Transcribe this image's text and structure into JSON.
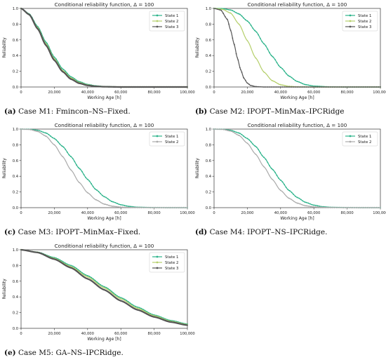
{
  "colors": {
    "State 1": "#2bb38a",
    "State 2": "#b5cf6b",
    "State 3": "#555555",
    "Panel_c State 2": "#aaaaaa"
  },
  "captions": [
    {
      "tag": "(a)",
      "text": " Case M1: Fmincon–NS–Fixed."
    },
    {
      "tag": "(b)",
      "text": " Case M2: IPOPT–MinMax–IPCRidge"
    },
    {
      "tag": "(c)",
      "text": " Case M3: IPOPT–MinMax–Fixed."
    },
    {
      "tag": "(d)",
      "text": " Case M4: IPOPT–NS–IPCRidge."
    },
    {
      "tag": "(e)",
      "text": " Case M5: GA–NS–IPCRidge."
    }
  ],
  "chart_data": [
    {
      "type": "line",
      "title": "Conditional reliability function, Δ = 100",
      "xlabel": "Working Age [h]",
      "ylabel": "Reliability",
      "xlim": [
        0,
        100000
      ],
      "ylim": [
        0,
        1.0
      ],
      "xticks": [
        "0",
        "20,000",
        "40,000",
        "60,000",
        "80,000",
        "100,000"
      ],
      "yticks": [
        "0.0",
        "0.2",
        "0.4",
        "0.6",
        "0.8",
        "1.0"
      ],
      "legend": "top-right",
      "series": [
        {
          "name": "State 1",
          "x": [
            0,
            5000,
            10000,
            15000,
            20000,
            25000,
            30000,
            35000,
            40000,
            45000,
            50000,
            60000,
            80000,
            100000
          ],
          "values": [
            1.0,
            0.93,
            0.77,
            0.57,
            0.38,
            0.23,
            0.13,
            0.068,
            0.033,
            0.015,
            0.006,
            0.001,
            0.0,
            0.0
          ]
        },
        {
          "name": "State 2",
          "x": [
            0,
            5000,
            10000,
            15000,
            20000,
            25000,
            30000,
            35000,
            40000,
            45000,
            50000,
            60000,
            80000,
            100000
          ],
          "values": [
            1.0,
            0.925,
            0.755,
            0.55,
            0.36,
            0.21,
            0.115,
            0.057,
            0.026,
            0.011,
            0.004,
            0.0,
            0.0,
            0.0
          ]
        },
        {
          "name": "State 3",
          "x": [
            0,
            5000,
            10000,
            15000,
            20000,
            25000,
            30000,
            35000,
            40000,
            45000,
            50000,
            60000,
            80000,
            100000
          ],
          "values": [
            1.0,
            0.92,
            0.74,
            0.53,
            0.34,
            0.195,
            0.1,
            0.047,
            0.02,
            0.008,
            0.003,
            0.0,
            0.0,
            0.0
          ]
        }
      ]
    },
    {
      "type": "line",
      "title": "Conditional reliability function, Δ = 100",
      "xlabel": "Working Age [h]",
      "ylabel": "Reliability",
      "xlim": [
        0,
        100000
      ],
      "ylim": [
        0,
        1.0
      ],
      "xticks": [
        "0",
        "20,000",
        "40,000",
        "60,000",
        "80,000",
        "100,000"
      ],
      "yticks": [
        "0.0",
        "0.2",
        "0.4",
        "0.6",
        "0.8",
        "1.0"
      ],
      "legend": "top-right",
      "series": [
        {
          "name": "State 1",
          "x": [
            0,
            5000,
            10000,
            15000,
            20000,
            25000,
            30000,
            35000,
            40000,
            45000,
            50000,
            55000,
            60000,
            70000,
            80000,
            100000
          ],
          "values": [
            1.0,
            0.998,
            0.98,
            0.93,
            0.84,
            0.71,
            0.55,
            0.39,
            0.25,
            0.14,
            0.07,
            0.03,
            0.012,
            0.001,
            0.0,
            0.0
          ]
        },
        {
          "name": "State 2",
          "x": [
            0,
            5000,
            10000,
            15000,
            20000,
            25000,
            30000,
            35000,
            40000,
            45000,
            50000,
            60000,
            80000,
            100000
          ],
          "values": [
            1.0,
            0.99,
            0.94,
            0.8,
            0.59,
            0.37,
            0.19,
            0.08,
            0.028,
            0.008,
            0.002,
            0.0,
            0.0,
            0.0
          ]
        },
        {
          "name": "State 3",
          "x": [
            0,
            4000,
            8000,
            10000,
            12000,
            14000,
            16000,
            18000,
            20000,
            22000,
            25000,
            30000,
            40000,
            100000
          ],
          "values": [
            1.0,
            0.98,
            0.86,
            0.72,
            0.55,
            0.37,
            0.22,
            0.11,
            0.05,
            0.02,
            0.005,
            0.0,
            0.0,
            0.0
          ]
        }
      ]
    },
    {
      "type": "line",
      "title": "Conditional reliability function, Δ = 100",
      "xlabel": "Working Age [h]",
      "ylabel": "Reliability",
      "xlim": [
        0,
        100000
      ],
      "ylim": [
        0,
        1.0
      ],
      "xticks": [
        "0",
        "20,000",
        "40,000",
        "60,000",
        "80,000",
        "100,000"
      ],
      "yticks": [
        "0.0",
        "0.2",
        "0.4",
        "0.6",
        "0.8",
        "1.0"
      ],
      "legend": "top-right",
      "series": [
        {
          "name": "State 1",
          "x": [
            0,
            5000,
            10000,
            15000,
            20000,
            25000,
            30000,
            35000,
            40000,
            45000,
            50000,
            55000,
            60000,
            65000,
            70000,
            80000,
            90000,
            100000
          ],
          "values": [
            1.0,
            0.998,
            0.985,
            0.95,
            0.88,
            0.78,
            0.65,
            0.5,
            0.36,
            0.23,
            0.14,
            0.075,
            0.037,
            0.016,
            0.006,
            0.001,
            0.0,
            0.0
          ]
        },
        {
          "name": "State 2",
          "x": [
            0,
            5000,
            10000,
            15000,
            20000,
            25000,
            30000,
            35000,
            40000,
            45000,
            50000,
            55000,
            60000,
            70000,
            80000,
            100000
          ],
          "values": [
            1.0,
            0.996,
            0.97,
            0.91,
            0.8,
            0.65,
            0.48,
            0.32,
            0.19,
            0.1,
            0.045,
            0.018,
            0.006,
            0.001,
            0.0,
            0.0
          ]
        }
      ]
    },
    {
      "type": "line",
      "title": "Conditional reliability function, Δ = 100",
      "xlabel": "Working Age [h]",
      "ylabel": "Reliability",
      "xlim": [
        0,
        100000
      ],
      "ylim": [
        0,
        1.0
      ],
      "xticks": [
        "0",
        "20,000",
        "40,000",
        "60,000",
        "80,000",
        "100,000"
      ],
      "yticks": [
        "0.0",
        "0.2",
        "0.4",
        "0.6",
        "0.8",
        "1.0"
      ],
      "legend": "top-right",
      "series": [
        {
          "name": "State 1",
          "x": [
            0,
            5000,
            10000,
            15000,
            20000,
            25000,
            30000,
            35000,
            40000,
            45000,
            50000,
            55000,
            60000,
            65000,
            70000,
            80000,
            90000,
            100000
          ],
          "values": [
            1.0,
            0.998,
            0.985,
            0.95,
            0.88,
            0.78,
            0.64,
            0.49,
            0.35,
            0.22,
            0.13,
            0.068,
            0.032,
            0.013,
            0.005,
            0.001,
            0.0,
            0.0
          ]
        },
        {
          "name": "State 2",
          "x": [
            0,
            5000,
            10000,
            15000,
            20000,
            25000,
            30000,
            35000,
            40000,
            45000,
            50000,
            55000,
            60000,
            70000,
            80000,
            100000
          ],
          "values": [
            1.0,
            0.997,
            0.975,
            0.92,
            0.82,
            0.68,
            0.52,
            0.36,
            0.22,
            0.12,
            0.058,
            0.024,
            0.009,
            0.001,
            0.0,
            0.0
          ]
        }
      ]
    },
    {
      "type": "line",
      "title": "Conditional reliability function, Δ = 100",
      "xlabel": "Working Age [h]",
      "ylabel": "Reliability",
      "xlim": [
        0,
        100000
      ],
      "ylim": [
        0,
        1.0
      ],
      "xticks": [
        "0",
        "20,000",
        "40,000",
        "60,000",
        "80,000",
        "100,000"
      ],
      "yticks": [
        "0.0",
        "0.2",
        "0.4",
        "0.6",
        "0.8",
        "1.0"
      ],
      "legend": "top-right",
      "series": [
        {
          "name": "State 1",
          "x": [
            0,
            10000,
            20000,
            30000,
            40000,
            50000,
            60000,
            70000,
            80000,
            90000,
            100000
          ],
          "values": [
            1.0,
            0.97,
            0.9,
            0.8,
            0.67,
            0.53,
            0.39,
            0.27,
            0.17,
            0.1,
            0.055
          ]
        },
        {
          "name": "State 2",
          "x": [
            0,
            10000,
            20000,
            30000,
            40000,
            50000,
            60000,
            70000,
            80000,
            90000,
            100000
          ],
          "values": [
            1.0,
            0.968,
            0.89,
            0.785,
            0.655,
            0.515,
            0.375,
            0.255,
            0.16,
            0.09,
            0.048
          ]
        },
        {
          "name": "State 3",
          "x": [
            0,
            10000,
            20000,
            30000,
            40000,
            50000,
            60000,
            70000,
            80000,
            90000,
            100000
          ],
          "values": [
            1.0,
            0.965,
            0.88,
            0.77,
            0.63,
            0.49,
            0.35,
            0.235,
            0.145,
            0.08,
            0.04
          ]
        }
      ]
    }
  ]
}
